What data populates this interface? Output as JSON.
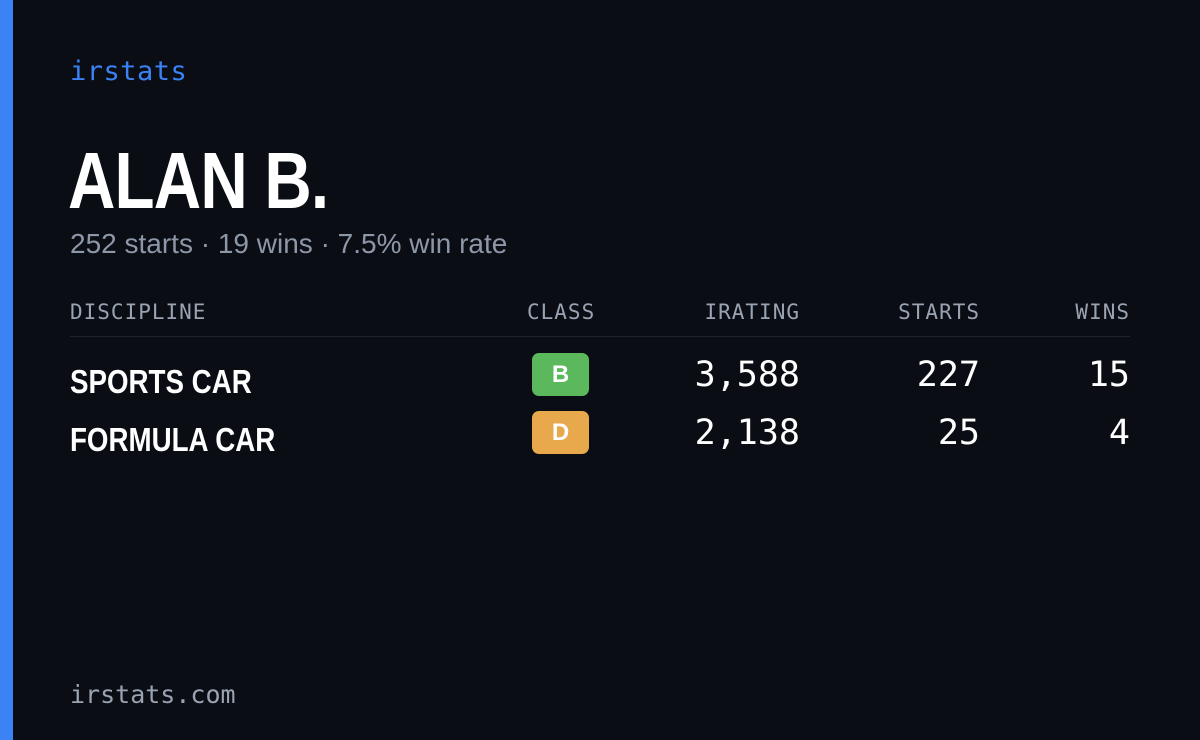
{
  "brand": "irstats",
  "player": {
    "name": "ALAN B.",
    "starts": "252 starts",
    "wins": "19 wins",
    "win_rate": "7.5% win rate",
    "separator": "·"
  },
  "table": {
    "headers": {
      "discipline": "DISCIPLINE",
      "class": "CLASS",
      "irating": "IRATING",
      "starts": "STARTS",
      "wins": "WINS"
    },
    "rows": [
      {
        "discipline": "SPORTS CAR",
        "class": "B",
        "class_color": "#5cb85c",
        "irating": "3,588",
        "starts": "227",
        "wins": "15"
      },
      {
        "discipline": "FORMULA CAR",
        "class": "D",
        "class_color": "#e8a94c",
        "irating": "2,138",
        "starts": "25",
        "wins": "4"
      }
    ]
  },
  "footer": "irstats.com",
  "colors": {
    "background": "#0a0d14",
    "accent": "#3b82f6",
    "muted_text": "#8e97a8"
  }
}
